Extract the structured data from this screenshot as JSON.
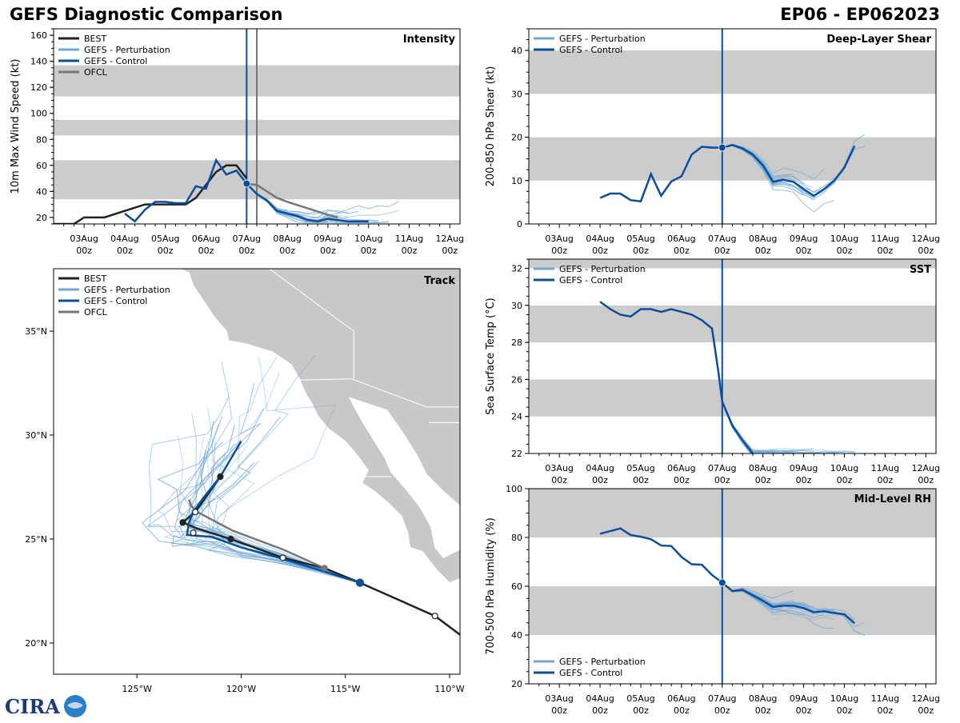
{
  "header": {
    "title": "GEFS Diagnostic Comparison",
    "storm_id": "EP06 - EP062023"
  },
  "colors": {
    "best": "#222222",
    "perturbation": "#6fa8d6",
    "control": "#0b4f9c",
    "ofcl": "#777777",
    "band": "#cccccc",
    "land": "#c8c8c8",
    "border": "#ffffff"
  },
  "time_axis": {
    "labels_top": [
      "03Aug",
      "04Aug",
      "05Aug",
      "06Aug",
      "07Aug",
      "08Aug",
      "09Aug",
      "10Aug",
      "11Aug",
      "12Aug"
    ],
    "labels_bottom": "00z"
  },
  "legend_full": [
    "BEST",
    "GEFS - Perturbation",
    "GEFS - Control",
    "OFCL"
  ],
  "legend_short": [
    "GEFS - Perturbation",
    "GEFS - Control"
  ],
  "logo_text": "CIRA",
  "chart_data": [
    {
      "id": "intensity",
      "type": "line",
      "title": "Intensity",
      "ylabel": "10m Max Wind Speed (kt)",
      "ylim": [
        15,
        165
      ],
      "yticks": [
        20,
        40,
        60,
        80,
        100,
        120,
        140,
        160
      ],
      "bands": [
        [
          34,
          64
        ],
        [
          83,
          95
        ],
        [
          113,
          137
        ]
      ],
      "vlines": [
        {
          "x": 7.0,
          "series": "control"
        },
        {
          "x": 7.25,
          "series": "ofcl"
        }
      ],
      "series": [
        {
          "name": "BEST",
          "x": [
            2.0,
            2.5,
            2.75,
            3.0,
            3.5,
            4.0,
            4.5,
            5.0,
            5.5,
            5.75,
            6.0,
            6.25,
            6.5,
            6.75,
            7.0
          ],
          "y": [
            15,
            15,
            15,
            20,
            20,
            25,
            30,
            30,
            30,
            35,
            45,
            55,
            60,
            60,
            50
          ]
        },
        {
          "name": "GEFS - Control",
          "x": [
            4.0,
            4.25,
            4.5,
            4.75,
            5.0,
            5.25,
            5.5,
            5.75,
            6.0,
            6.25,
            6.5,
            6.75,
            7.0,
            7.25,
            7.5,
            7.75,
            8.0,
            8.25,
            8.5,
            8.75,
            9.0,
            9.25,
            9.5,
            9.75,
            10.0
          ],
          "y": [
            23,
            17,
            26,
            32,
            32,
            31,
            31,
            44,
            42,
            64,
            53,
            56,
            46,
            38,
            33,
            25,
            23,
            21,
            18,
            17,
            19,
            18,
            17,
            17,
            17
          ]
        },
        {
          "name": "OFCL",
          "x": [
            7.0,
            7.25,
            7.5,
            7.75,
            8.0,
            8.5,
            9.0,
            9.25
          ],
          "y": [
            46,
            45,
            40,
            35,
            32,
            27,
            22,
            20
          ]
        }
      ],
      "marker": {
        "x": 7.0,
        "y": 46
      }
    },
    {
      "id": "shear",
      "type": "line",
      "title": "Deep-Layer Shear",
      "ylabel": "200-850 hPa Shear (kt)",
      "ylim": [
        0,
        45
      ],
      "yticks": [
        0,
        10,
        20,
        30,
        40
      ],
      "bands": [
        [
          10,
          20
        ],
        [
          30,
          40
        ]
      ],
      "vlines": [
        {
          "x": 7.0,
          "series": "control"
        }
      ],
      "series": [
        {
          "name": "GEFS - Control",
          "x": [
            4.0,
            4.25,
            4.5,
            4.75,
            5.0,
            5.25,
            5.5,
            5.75,
            6.0,
            6.25,
            6.5,
            6.75,
            7.0,
            7.25,
            7.5,
            7.75,
            8.0,
            8.25,
            8.5,
            8.75,
            9.0,
            9.25,
            9.5,
            9.75,
            10.0,
            10.25
          ],
          "y": [
            6.0,
            7.0,
            7.0,
            5.5,
            5.2,
            11.5,
            6.5,
            9.8,
            11,
            16,
            17.8,
            17.6,
            17.6,
            18.2,
            17.4,
            16,
            13.5,
            9.7,
            10.2,
            9.7,
            8,
            6.5,
            8,
            10,
            13,
            18
          ]
        }
      ],
      "marker": {
        "x": 7.0,
        "y": 17.6
      }
    },
    {
      "id": "sst",
      "type": "line",
      "title": "SST",
      "ylabel": "Sea Surface Temp (°C)",
      "ylim": [
        22,
        32.5
      ],
      "yticks": [
        22,
        24,
        26,
        28,
        30,
        32
      ],
      "bands": [
        [
          24,
          26
        ],
        [
          28,
          30
        ],
        [
          32,
          32.5
        ]
      ],
      "vlines": [
        {
          "x": 7.0,
          "series": "control"
        }
      ],
      "series": [
        {
          "name": "GEFS - Control",
          "x": [
            4.0,
            4.25,
            4.5,
            4.75,
            5.0,
            5.25,
            5.5,
            5.75,
            6.0,
            6.25,
            6.5,
            6.75,
            6.9,
            7.0,
            7.25,
            7.5,
            7.75
          ],
          "y": [
            30.2,
            29.8,
            29.5,
            29.4,
            29.8,
            29.8,
            29.65,
            29.8,
            29.65,
            29.5,
            29.2,
            28.75,
            26.5,
            24.8,
            23.5,
            22.7,
            22.0
          ]
        }
      ]
    },
    {
      "id": "rh",
      "type": "line",
      "title": "Mid-Level RH",
      "ylabel": "700-500 hPa Humidity (%)",
      "ylim": [
        20,
        100
      ],
      "yticks": [
        20,
        40,
        60,
        80,
        100
      ],
      "bands": [
        [
          40,
          60
        ],
        [
          80,
          100
        ]
      ],
      "vlines": [
        {
          "x": 7.0,
          "series": "control"
        }
      ],
      "series": [
        {
          "name": "GEFS - Control",
          "x": [
            4.0,
            4.25,
            4.5,
            4.75,
            5.0,
            5.25,
            5.5,
            5.75,
            6.0,
            6.25,
            6.5,
            6.75,
            7.0,
            7.25,
            7.5,
            7.75,
            8.0,
            8.25,
            8.5,
            8.75,
            9.0,
            9.25,
            9.5,
            9.75,
            10.0,
            10.25
          ],
          "y": [
            81.5,
            82.6,
            83.7,
            81,
            80.3,
            79.3,
            76.7,
            76.5,
            72,
            69,
            68.8,
            64.6,
            61.5,
            58,
            58.5,
            56.3,
            54,
            51.5,
            52,
            52,
            51,
            49.3,
            49.7,
            49,
            48.5,
            44.8
          ]
        }
      ],
      "marker": {
        "x": 7.0,
        "y": 61.5
      }
    },
    {
      "id": "track",
      "type": "scatter",
      "title": "Track",
      "lon_range": [
        -129,
        -109.5
      ],
      "lat_range": [
        18.5,
        38
      ],
      "xticks": [
        -125,
        -120,
        -115,
        -110
      ],
      "xtick_labels": [
        "125°W",
        "120°W",
        "115°W",
        "110°W"
      ],
      "yticks": [
        20,
        25,
        30,
        35
      ],
      "ytick_labels": [
        "20°N",
        "25°N",
        "30°N",
        "35°N"
      ],
      "series": [
        {
          "name": "BEST",
          "lon": [
            -109.5,
            -110.7,
            -114.3,
            -116.0,
            -118.0,
            -120.5,
            -122.1,
            -122.8,
            -122.2,
            -121.0
          ],
          "lat": [
            20.4,
            21.3,
            22.9,
            23.6,
            24.1,
            25.0,
            25.5,
            25.8,
            26.3,
            28.0
          ]
        },
        {
          "name": "GEFS - Control",
          "lon": [
            -114.3,
            -116.2,
            -118.2,
            -120.0,
            -121.4,
            -122.6,
            -122.5,
            -122.3,
            -121.8,
            -121.0,
            -120.0
          ],
          "lat": [
            22.9,
            23.5,
            24.1,
            24.6,
            25.1,
            25.2,
            25.8,
            26.3,
            27.0,
            28.0,
            29.7
          ]
        },
        {
          "name": "OFCL",
          "lon": [
            -116.0,
            -118.0,
            -120.4,
            -122.1,
            -122.4,
            -122.5
          ],
          "lat": [
            23.6,
            24.5,
            25.4,
            26.3,
            26.6,
            26.9
          ]
        }
      ],
      "markers": [
        {
          "lon": -110.7,
          "lat": 21.3,
          "style": "open"
        },
        {
          "lon": -114.3,
          "lat": 22.9,
          "style": "control"
        },
        {
          "lon": -116.0,
          "lat": 23.6,
          "style": "ofcl"
        },
        {
          "lon": -118.0,
          "lat": 24.1,
          "style": "open"
        },
        {
          "lon": -120.5,
          "lat": 25.0,
          "style": "best"
        },
        {
          "lon": -122.3,
          "lat": 25.3,
          "style": "open"
        },
        {
          "lon": -122.8,
          "lat": 25.8,
          "style": "best"
        },
        {
          "lon": -122.2,
          "lat": 26.3,
          "style": "open"
        },
        {
          "lon": -121.0,
          "lat": 28.0,
          "style": "best"
        }
      ]
    }
  ]
}
